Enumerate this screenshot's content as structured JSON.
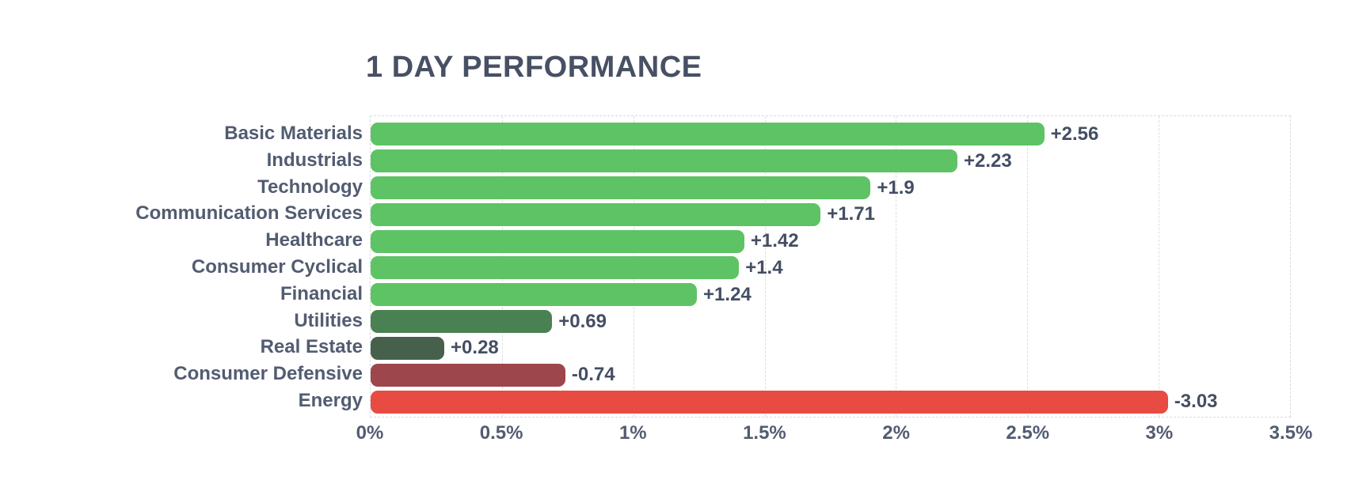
{
  "page": {
    "background_color": "#ffffff"
  },
  "chart_data": {
    "type": "bar",
    "orientation": "horizontal",
    "title": "1 DAY PERFORMANCE",
    "categories": [
      "Basic Materials",
      "Industrials",
      "Technology",
      "Communication Services",
      "Healthcare",
      "Consumer Cyclical",
      "Financial",
      "Utilities",
      "Real Estate",
      "Consumer Defensive",
      "Energy"
    ],
    "values": [
      2.56,
      2.23,
      1.9,
      1.71,
      1.42,
      1.4,
      1.24,
      0.69,
      0.28,
      -0.74,
      -3.03
    ],
    "value_labels": [
      "+2.56",
      "+2.23",
      "+1.9",
      "+1.71",
      "+1.42",
      "+1.4",
      "+1.24",
      "+0.69",
      "+0.28",
      "-0.74",
      "-3.03"
    ],
    "bar_colors": [
      "#5ec364",
      "#5ec364",
      "#5ec364",
      "#5ec364",
      "#5ec364",
      "#5ec364",
      "#5ec364",
      "#4a8153",
      "#46604c",
      "#9d464b",
      "#e84b42"
    ],
    "bar_length_mode": "absolute-value",
    "xlabel": "",
    "ylabel": "",
    "xlim": [
      0,
      3.5
    ],
    "x_ticks": [
      {
        "value": 0,
        "label": "0%"
      },
      {
        "value": 0.5,
        "label": "0.5%"
      },
      {
        "value": 1,
        "label": "1%"
      },
      {
        "value": 1.5,
        "label": "1.5%"
      },
      {
        "value": 2,
        "label": "2%"
      },
      {
        "value": 2.5,
        "label": "2.5%"
      },
      {
        "value": 3,
        "label": "3%"
      },
      {
        "value": 3.5,
        "label": "3.5%"
      }
    ],
    "grid": {
      "vertical_dashed": true,
      "color": "#d9dde2"
    },
    "legend": null
  },
  "colors": {
    "positive_strong": "#5ec364",
    "positive_medium": "#4a8153",
    "positive_weak": "#46604c",
    "negative_weak": "#9d464b",
    "negative_strong": "#e84b42",
    "title_text": "#475064",
    "label_text": "#525c71",
    "value_text": "#444e63",
    "grid": "#d9dde2"
  }
}
